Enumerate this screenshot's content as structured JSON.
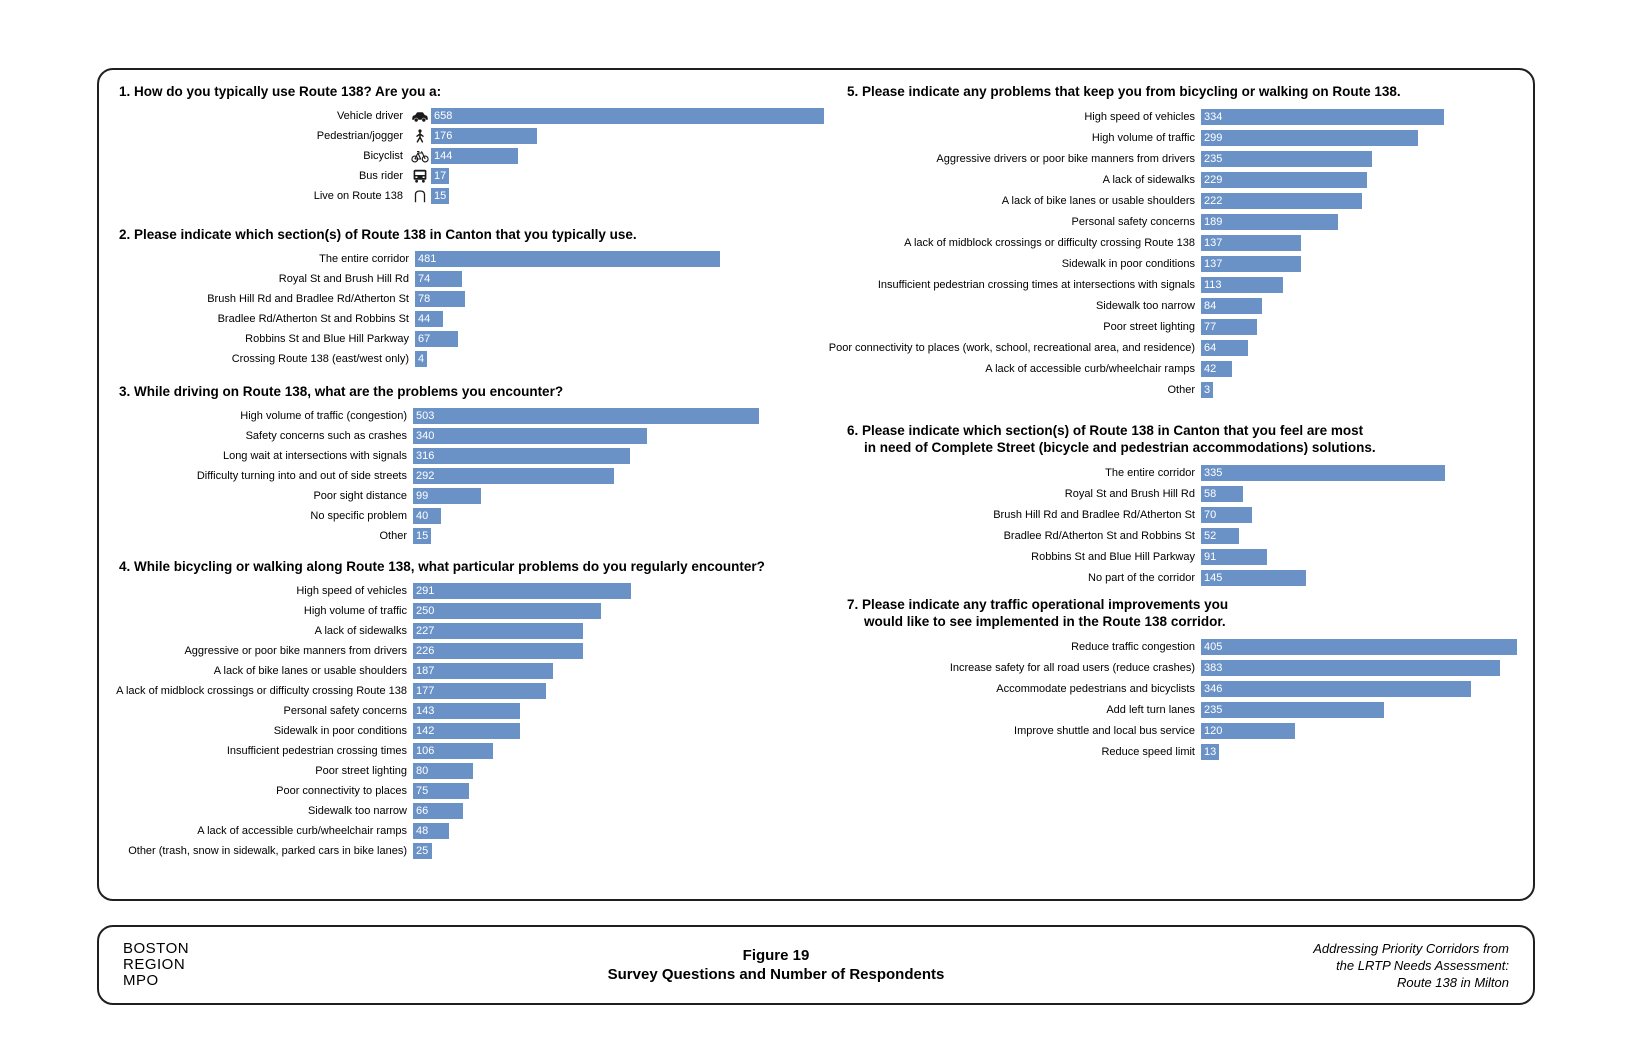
{
  "colors": {
    "bar": "#6a92c7",
    "panel_border": "#1f1f1f",
    "value_text": "#ffffff"
  },
  "chart_data": [
    {
      "type": "bar",
      "title": "1. How do you typically use Route 138? Are you a:",
      "categories": [
        "Vehicle driver",
        "Pedestrian/jogger",
        "Bicyclist",
        "Bus rider",
        "Live on Route 138"
      ],
      "icons": [
        "car-icon",
        "pedestrian-icon",
        "bicycle-icon",
        "bus-icon",
        "house-icon"
      ],
      "values": [
        658,
        176,
        144,
        17,
        15
      ],
      "xlabel": "",
      "ylabel": "",
      "grid": false,
      "legend": "none",
      "value_labels": "inside-left"
    },
    {
      "type": "bar",
      "title": "2. Please indicate which section(s) of Route 138 in Canton that you typically use.",
      "categories": [
        "The entire corridor",
        "Royal St and Brush Hill Rd",
        "Brush Hill Rd and Bradlee Rd/Atherton St",
        "Bradlee Rd/Atherton St and Robbins St",
        "Robbins St and Blue Hill Parkway",
        "Crossing Route 138 (east/west only)"
      ],
      "values": [
        481,
        74,
        78,
        44,
        67,
        4
      ],
      "xlabel": "",
      "ylabel": "",
      "grid": false,
      "legend": "none",
      "value_labels": "inside-left"
    },
    {
      "type": "bar",
      "title": "3. While driving on Route 138, what are the problems you encounter?",
      "categories": [
        "High volume of traffic (congestion)",
        "Safety concerns such as crashes",
        "Long wait at intersections with signals",
        "Difficulty turning into and out of side streets",
        "Poor sight distance",
        "No specific problem",
        "Other"
      ],
      "values": [
        503,
        340,
        316,
        292,
        99,
        40,
        15
      ],
      "xlabel": "",
      "ylabel": "",
      "grid": false,
      "legend": "none",
      "value_labels": "inside-left"
    },
    {
      "type": "bar",
      "title": "4. While bicycling or walking along Route 138, what particular problems do you regularly encounter?",
      "categories": [
        "High speed of vehicles",
        "High volume of traffic",
        "A lack of sidewalks",
        "Aggressive or poor bike manners from drivers",
        "A lack of bike lanes or usable shoulders",
        "A lack of midblock crossings or difficulty crossing Route 138",
        "Personal safety concerns",
        "Sidewalk in poor conditions",
        "Insufficient pedestrian crossing times",
        "Poor street lighting",
        "Poor connectivity to places",
        "Sidewalk too narrow",
        "A lack of accessible curb/wheelchair ramps",
        "Other (trash, snow in sidewalk, parked cars in bike lanes)"
      ],
      "values": [
        291,
        250,
        227,
        226,
        187,
        177,
        143,
        142,
        106,
        80,
        75,
        66,
        48,
        25
      ],
      "xlabel": "",
      "ylabel": "",
      "grid": false,
      "legend": "none",
      "value_labels": "inside-left"
    },
    {
      "type": "bar",
      "title": "5. Please indicate any problems that keep you from bicycling or walking on Route 138.",
      "categories": [
        "High speed of vehicles",
        "High volume of traffic",
        "Aggressive drivers or poor bike manners from drivers",
        "A lack of sidewalks",
        "A lack of bike lanes or usable shoulders",
        "Personal safety concerns",
        "A lack of midblock crossings or difficulty crossing Route 138",
        "Sidewalk in poor conditions",
        "Insufficient pedestrian crossing times at intersections with signals",
        "Sidewalk too narrow",
        "Poor street lighting",
        "Poor connectivity to places (work, school, recreational area, and residence)",
        "A lack of accessible curb/wheelchair ramps",
        "Other"
      ],
      "values": [
        334,
        299,
        235,
        229,
        222,
        189,
        137,
        137,
        113,
        84,
        77,
        64,
        42,
        3
      ],
      "xlabel": "",
      "ylabel": "",
      "grid": false,
      "legend": "none",
      "value_labels": "inside-left"
    },
    {
      "type": "bar",
      "title": "6. Please indicate which section(s) of Route 138 in Canton that you feel are most\nin need of Complete Street (bicycle and pedestrian accommodations) solutions.",
      "categories": [
        "The entire corridor",
        "Royal St and Brush Hill Rd",
        "Brush Hill Rd and Bradlee Rd/Atherton St",
        "Bradlee Rd/Atherton St and Robbins St",
        "Robbins St and Blue Hill Parkway",
        "No part of the corridor"
      ],
      "values": [
        335,
        58,
        70,
        52,
        91,
        145
      ],
      "xlabel": "",
      "ylabel": "",
      "grid": false,
      "legend": "none",
      "value_labels": "inside-left"
    },
    {
      "type": "bar",
      "title": "7. Please indicate any traffic operational improvements you\nwould like to see implemented in the Route 138 corridor.",
      "categories": [
        "Reduce traffic congestion",
        "Increase safety for all road users (reduce crashes)",
        "Accommodate pedestrians and bicyclists",
        "Add left turn lanes",
        "Improve shuttle and local bus service",
        "Reduce speed limit"
      ],
      "values": [
        405,
        383,
        346,
        235,
        120,
        13
      ],
      "xlabel": "",
      "ylabel": "",
      "grid": false,
      "legend": "none",
      "value_labels": "inside-left"
    }
  ],
  "footer": {
    "org_lines": [
      "BOSTON",
      "REGION",
      "MPO"
    ],
    "figure_label": "Figure 19",
    "figure_caption": "Survey Questions and Number of Respondents",
    "source_lines": [
      "Addressing Priority Corridors from",
      "the LRTP Needs Assessment:",
      "Route 138 in Milton"
    ]
  }
}
